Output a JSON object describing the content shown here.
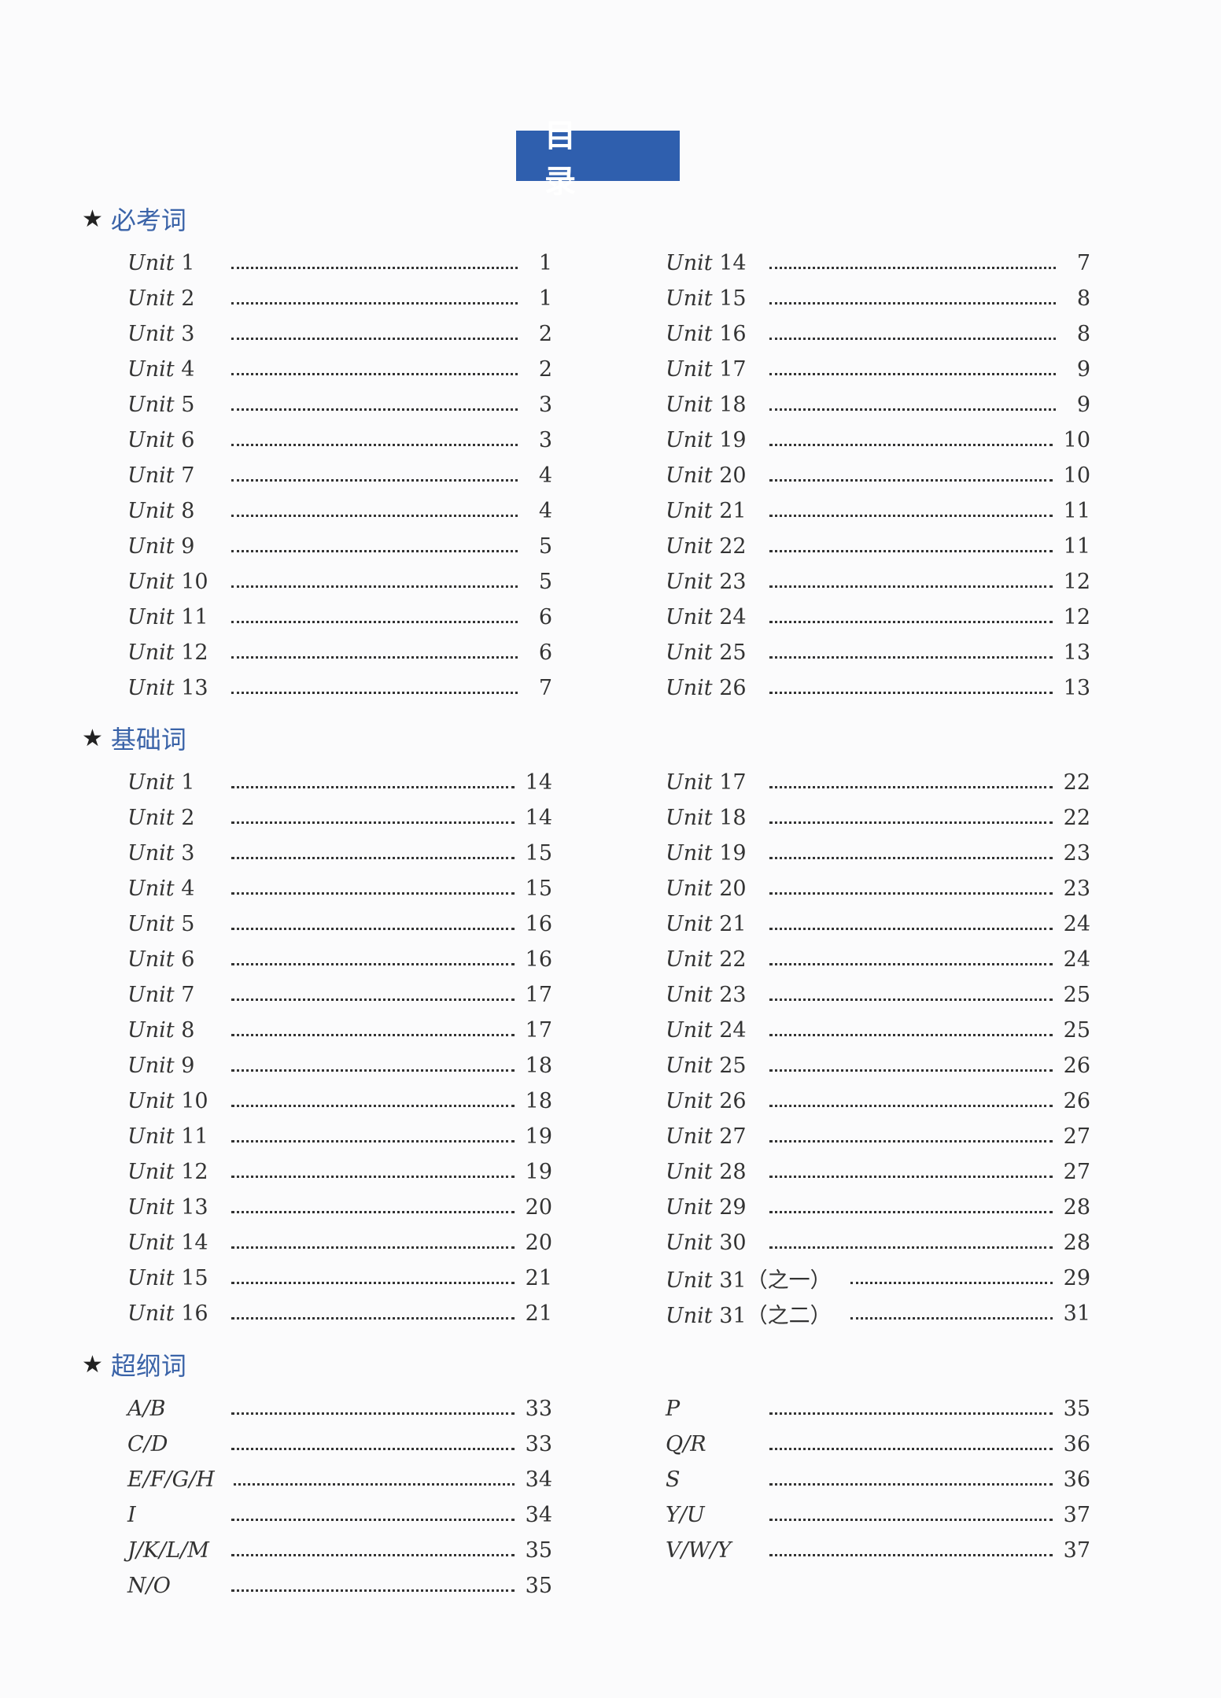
{
  "title": "目　录",
  "sections": [
    {
      "title": "必考词",
      "left": [
        {
          "unit": "Unit",
          "num": "1",
          "page": "1"
        },
        {
          "unit": "Unit",
          "num": "2",
          "page": "1"
        },
        {
          "unit": "Unit",
          "num": "3",
          "page": "2"
        },
        {
          "unit": "Unit",
          "num": "4",
          "page": "2"
        },
        {
          "unit": "Unit",
          "num": "5",
          "page": "3"
        },
        {
          "unit": "Unit",
          "num": "6",
          "page": "3"
        },
        {
          "unit": "Unit",
          "num": "7",
          "page": "4"
        },
        {
          "unit": "Unit",
          "num": "8",
          "page": "4"
        },
        {
          "unit": "Unit",
          "num": "9",
          "page": "5"
        },
        {
          "unit": "Unit",
          "num": "10",
          "page": "5"
        },
        {
          "unit": "Unit",
          "num": "11",
          "page": "6"
        },
        {
          "unit": "Unit",
          "num": "12",
          "page": "6"
        },
        {
          "unit": "Unit",
          "num": "13",
          "page": "7"
        }
      ],
      "right": [
        {
          "unit": "Unit",
          "num": "14",
          "page": "7"
        },
        {
          "unit": "Unit",
          "num": "15",
          "page": "8"
        },
        {
          "unit": "Unit",
          "num": "16",
          "page": "8"
        },
        {
          "unit": "Unit",
          "num": "17",
          "page": "9"
        },
        {
          "unit": "Unit",
          "num": "18",
          "page": "9"
        },
        {
          "unit": "Unit",
          "num": "19",
          "page": "10"
        },
        {
          "unit": "Unit",
          "num": "20",
          "page": "10"
        },
        {
          "unit": "Unit",
          "num": "21",
          "page": "11"
        },
        {
          "unit": "Unit",
          "num": "22",
          "page": "11"
        },
        {
          "unit": "Unit",
          "num": "23",
          "page": "12"
        },
        {
          "unit": "Unit",
          "num": "24",
          "page": "12"
        },
        {
          "unit": "Unit",
          "num": "25",
          "page": "13"
        },
        {
          "unit": "Unit",
          "num": "26",
          "page": "13"
        }
      ]
    },
    {
      "title": "基础词",
      "left": [
        {
          "unit": "Unit",
          "num": "1",
          "page": "14"
        },
        {
          "unit": "Unit",
          "num": "2",
          "page": "14"
        },
        {
          "unit": "Unit",
          "num": "3",
          "page": "15"
        },
        {
          "unit": "Unit",
          "num": "4",
          "page": "15"
        },
        {
          "unit": "Unit",
          "num": "5",
          "page": "16"
        },
        {
          "unit": "Unit",
          "num": "6",
          "page": "16"
        },
        {
          "unit": "Unit",
          "num": "7",
          "page": "17"
        },
        {
          "unit": "Unit",
          "num": "8",
          "page": "17"
        },
        {
          "unit": "Unit",
          "num": "9",
          "page": "18"
        },
        {
          "unit": "Unit",
          "num": "10",
          "page": "18"
        },
        {
          "unit": "Unit",
          "num": "11",
          "page": "19"
        },
        {
          "unit": "Unit",
          "num": "12",
          "page": "19"
        },
        {
          "unit": "Unit",
          "num": "13",
          "page": "20"
        },
        {
          "unit": "Unit",
          "num": "14",
          "page": "20"
        },
        {
          "unit": "Unit",
          "num": "15",
          "page": "21"
        },
        {
          "unit": "Unit",
          "num": "16",
          "page": "21"
        }
      ],
      "right": [
        {
          "unit": "Unit",
          "num": "17",
          "page": "22"
        },
        {
          "unit": "Unit",
          "num": "18",
          "page": "22"
        },
        {
          "unit": "Unit",
          "num": "19",
          "page": "23"
        },
        {
          "unit": "Unit",
          "num": "20",
          "page": "23"
        },
        {
          "unit": "Unit",
          "num": "21",
          "page": "24"
        },
        {
          "unit": "Unit",
          "num": "22",
          "page": "24"
        },
        {
          "unit": "Unit",
          "num": "23",
          "page": "25"
        },
        {
          "unit": "Unit",
          "num": "24",
          "page": "25"
        },
        {
          "unit": "Unit",
          "num": "25",
          "page": "26"
        },
        {
          "unit": "Unit",
          "num": "26",
          "page": "26"
        },
        {
          "unit": "Unit",
          "num": "27",
          "page": "27"
        },
        {
          "unit": "Unit",
          "num": "28",
          "page": "27"
        },
        {
          "unit": "Unit",
          "num": "29",
          "page": "28"
        },
        {
          "unit": "Unit",
          "num": "30",
          "page": "28"
        },
        {
          "unit": "Unit",
          "num": "31（之一）",
          "page": "29"
        },
        {
          "unit": "Unit",
          "num": "31（之二）",
          "page": "31"
        }
      ]
    },
    {
      "title": "超纲词",
      "left": [
        {
          "unit": "A/B",
          "num": "",
          "page": "33"
        },
        {
          "unit": "C/D",
          "num": "",
          "page": "33"
        },
        {
          "unit": "E/F/G/H",
          "num": "",
          "page": "34"
        },
        {
          "unit": "I",
          "num": "",
          "page": "34"
        },
        {
          "unit": "J/K/L/M",
          "num": "",
          "page": "35"
        },
        {
          "unit": "N/O",
          "num": "",
          "page": "35"
        }
      ],
      "right": [
        {
          "unit": "P",
          "num": "",
          "page": "35"
        },
        {
          "unit": "Q/R",
          "num": "",
          "page": "36"
        },
        {
          "unit": "S",
          "num": "",
          "page": "36"
        },
        {
          "unit": "Y/U",
          "num": "",
          "page": "37"
        },
        {
          "unit": "V/W/Y",
          "num": "",
          "page": "37"
        }
      ]
    }
  ]
}
